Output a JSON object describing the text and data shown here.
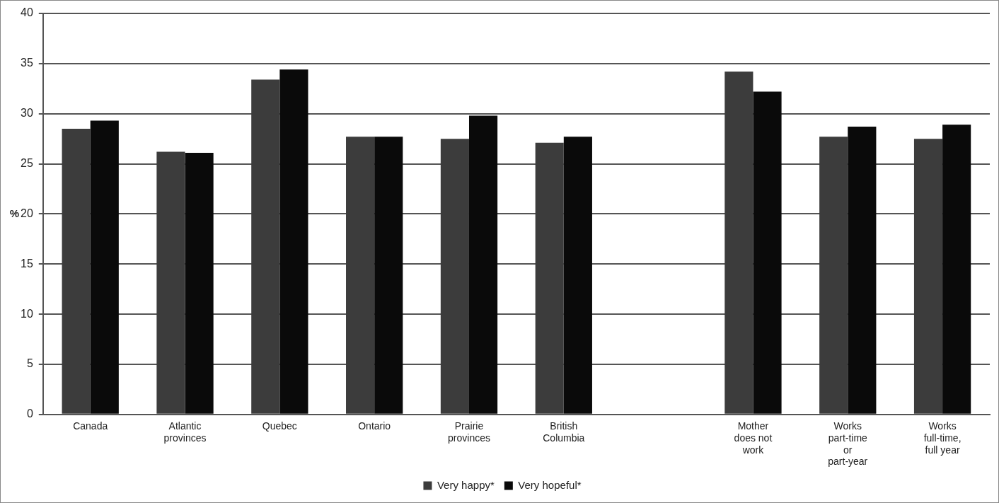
{
  "chart_data": {
    "type": "bar",
    "ylabel": "%",
    "categories": [
      "Canada",
      "Atlantic provinces",
      "Quebec",
      "Ontario",
      "Prairie provinces",
      "British Columbia",
      null,
      "Mother does not work",
      "Works part-time or part-year",
      "Works full-time, full year"
    ],
    "series": [
      {
        "name": "Very happy*",
        "color": "#3c3c3c",
        "values": [
          28.5,
          26.2,
          33.4,
          27.7,
          27.5,
          27.1,
          null,
          34.2,
          27.7,
          27.5
        ]
      },
      {
        "name": "Very hopeful*",
        "color": "#0a0a0a",
        "values": [
          29.3,
          26.1,
          34.4,
          27.7,
          29.8,
          27.7,
          null,
          32.2,
          28.7,
          28.9
        ]
      }
    ],
    "ylim": [
      0,
      40
    ],
    "yticks": [
      0,
      5,
      10,
      15,
      20,
      25,
      30,
      35,
      40
    ],
    "grid": "y",
    "legend": "bottom"
  }
}
